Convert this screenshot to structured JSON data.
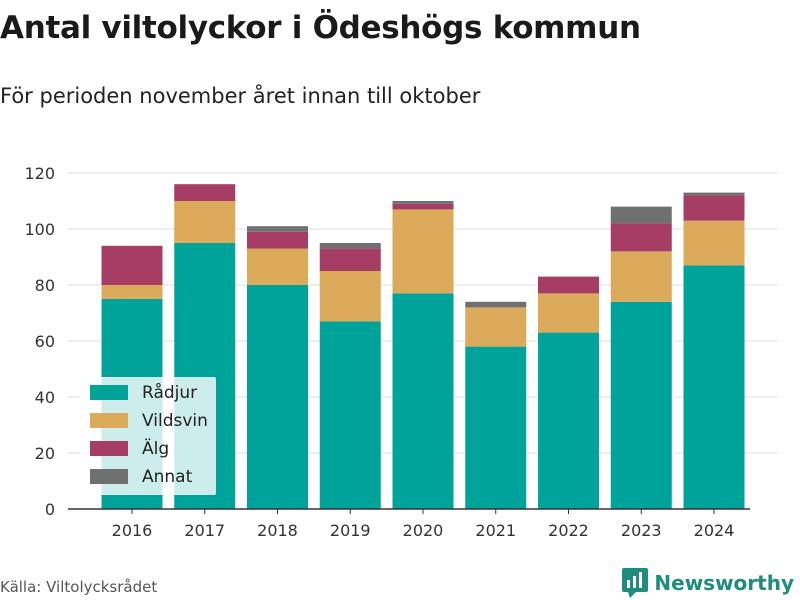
{
  "title": "Antal viltolyckor i Ödeshögs kommun",
  "subtitle": "För perioden november året innan till oktober",
  "source": "Källa: Viltolycksrådet",
  "brand": {
    "name": "Newsworthy",
    "color": "#1f8c7e"
  },
  "chart_data": {
    "type": "bar",
    "stacked": true,
    "categories": [
      "2016",
      "2017",
      "2018",
      "2019",
      "2020",
      "2021",
      "2022",
      "2023",
      "2024"
    ],
    "series": [
      {
        "name": "Rådjur",
        "color": "#00a39a",
        "values": [
          75,
          95,
          80,
          67,
          77,
          58,
          63,
          74,
          87
        ]
      },
      {
        "name": "Vildsvin",
        "color": "#dbaa5a",
        "values": [
          5,
          15,
          13,
          18,
          30,
          14,
          14,
          18,
          16
        ]
      },
      {
        "name": "Älg",
        "color": "#a63d64",
        "values": [
          14,
          6,
          6,
          8,
          2,
          0,
          6,
          10,
          9
        ]
      },
      {
        "name": "Annat",
        "color": "#707070",
        "values": [
          0,
          0,
          2,
          2,
          1,
          2,
          0,
          6,
          1
        ]
      }
    ],
    "ylim": [
      0,
      120
    ],
    "yticks": [
      0,
      20,
      40,
      60,
      80,
      100,
      120
    ],
    "xlabel": "",
    "ylabel": "",
    "grid": true,
    "legend_position": "bottom-left"
  }
}
